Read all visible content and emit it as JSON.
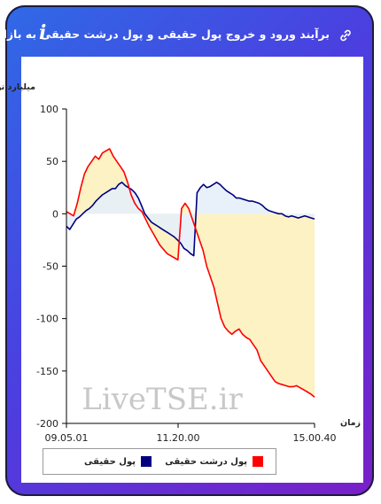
{
  "header": {
    "title": "برآیند ورود و خروج پول حقیقی و پول درشت حقیقی به بازار",
    "info_icon": "i"
  },
  "legend": [
    {
      "label": "پول حقیقی",
      "color": "#00007f"
    },
    {
      "label": "پول درشت حقیقی",
      "color": "#ff0000"
    }
  ],
  "watermark": "LiveTSE.ir",
  "chart_data": {
    "type": "line",
    "ylabel": "میلیارد تومان",
    "xlabel": "زمان",
    "ylim": [
      -200,
      100
    ],
    "yticks": [
      100,
      50,
      0,
      -50,
      -100,
      -150,
      -200
    ],
    "x_tick_labels": [
      "09.05.01",
      "11.20.00",
      "15.00.40"
    ],
    "x_range": [
      "09.05.01",
      "15.00.40"
    ],
    "grid": false,
    "legend_position": "bottom",
    "fill": "area between each series and 0 (pale blue for positive blue series, pale yellow otherwise)",
    "series": [
      {
        "name": "پول حقیقی",
        "color": "#00007f",
        "values": [
          -12,
          -15,
          -10,
          -5,
          -3,
          0,
          3,
          5,
          8,
          12,
          15,
          18,
          20,
          22,
          24,
          24,
          28,
          30,
          27,
          25,
          23,
          20,
          15,
          8,
          0,
          -4,
          -8,
          -10,
          -12,
          -14,
          -16,
          -18,
          -20,
          -22,
          -25,
          -28,
          -33,
          -35,
          -38,
          -40,
          20,
          25,
          28,
          25,
          26,
          28,
          30,
          28,
          25,
          22,
          20,
          18,
          15,
          15,
          14,
          13,
          12,
          12,
          11,
          10,
          8,
          5,
          3,
          2,
          1,
          0,
          0,
          -2,
          -3,
          -2,
          -3,
          -4,
          -3,
          -2,
          -3,
          -4,
          -5
        ]
      },
      {
        "name": "پول درشت حقیقی",
        "color": "#ff0000",
        "values": [
          2,
          0,
          -2,
          10,
          25,
          38,
          45,
          50,
          55,
          52,
          58,
          60,
          62,
          55,
          50,
          45,
          40,
          30,
          18,
          10,
          5,
          2,
          -5,
          -12,
          -18,
          -24,
          -30,
          -34,
          -38,
          -40,
          -42,
          -44,
          5,
          10,
          5,
          -5,
          -15,
          -25,
          -35,
          -50,
          -60,
          -70,
          -85,
          -100,
          -108,
          -112,
          -115,
          -112,
          -110,
          -115,
          -118,
          -120,
          -125,
          -130,
          -140,
          -145,
          -150,
          -155,
          -160,
          -162,
          -163,
          -164,
          -165,
          -165,
          -164,
          -166,
          -168,
          -170,
          -172,
          -175
        ]
      }
    ]
  }
}
